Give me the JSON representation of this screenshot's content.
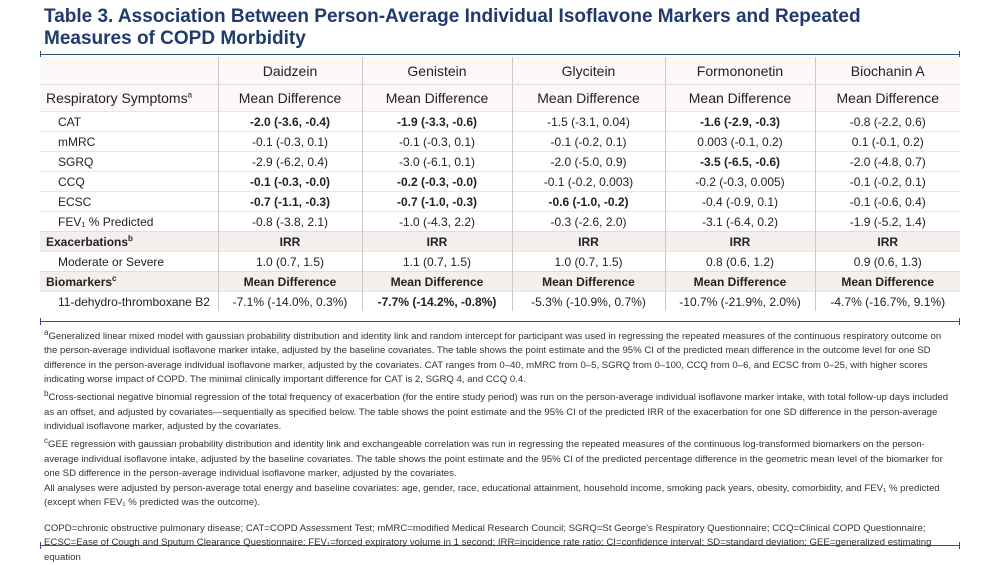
{
  "title": "Table 3. Association Between Person-Average Individual Isoflavone Markers and Repeated Measures of COPD Morbidity",
  "table": {
    "columns": [
      "Daidzein",
      "Genistein",
      "Glycitein",
      "Formononetin",
      "Biochanin A"
    ],
    "sections": [
      {
        "label": "Respiratory Symptoms",
        "sup": "a",
        "header": "Mean Difference",
        "strong": false,
        "rows": [
          {
            "label": "CAT",
            "cells": [
              "-2.0 (-3.6, -0.4)",
              "-1.9 (-3.3, -0.6)",
              "-1.5 (-3.1, 0.04)",
              "-1.6 (-2.9, -0.3)",
              "-0.8 (-2.2, 0.6)"
            ],
            "bold": [
              true,
              true,
              false,
              true,
              false
            ]
          },
          {
            "label": "mMRC",
            "cells": [
              "-0.1 (-0.3, 0.1)",
              "-0.1 (-0.3, 0.1)",
              "-0.1 (-0.2, 0.1)",
              "0.003 (-0.1, 0.2)",
              "0.1 (-0.1, 0.2)"
            ],
            "bold": [
              false,
              false,
              false,
              false,
              false
            ]
          },
          {
            "label": "SGRQ",
            "cells": [
              "-2.9 (-6.2, 0.4)",
              "-3.0 (-6.1, 0.1)",
              "-2.0 (-5.0, 0.9)",
              "-3.5 (-6.5, -0.6)",
              "-2.0 (-4.8, 0.7)"
            ],
            "bold": [
              false,
              false,
              false,
              true,
              false
            ]
          },
          {
            "label": "CCQ",
            "cells": [
              "-0.1 (-0.3, -0.0)",
              "-0.2 (-0.3, -0.0)",
              "-0.1 (-0.2, 0.003)",
              "-0.2 (-0.3, 0.005)",
              "-0.1 (-0.2, 0.1)"
            ],
            "bold": [
              true,
              true,
              false,
              false,
              false
            ]
          },
          {
            "label": "ECSC",
            "cells": [
              "-0.7 (-1.1, -0.3)",
              "-0.7 (-1.0, -0.3)",
              "-0.6 (-1.0, -0.2)",
              "-0.4 (-0.9, 0.1)",
              "-0.1 (-0.6, 0.4)"
            ],
            "bold": [
              true,
              true,
              true,
              false,
              false
            ]
          },
          {
            "label": "FEV₁ % Predicted",
            "cells": [
              "-0.8 (-3.8, 2.1)",
              "-1.0 (-4.3, 2.2)",
              "-0.3 (-2.6, 2.0)",
              "-3.1 (-6.4, 0.2)",
              "-1.9 (-5.2, 1.4)"
            ],
            "bold": [
              false,
              false,
              false,
              false,
              false
            ]
          }
        ]
      },
      {
        "label": "Exacerbations",
        "sup": "b",
        "header": "IRR",
        "strong": true,
        "rows": [
          {
            "label": "Moderate or Severe",
            "cells": [
              "1.0 (0.7, 1.5)",
              "1.1 (0.7, 1.5)",
              "1.0 (0.7, 1.5)",
              "0.8 (0.6, 1.2)",
              "0.9 (0.6, 1.3)"
            ],
            "bold": [
              false,
              false,
              false,
              false,
              false
            ]
          }
        ]
      },
      {
        "label": "Biomarkers",
        "sup": "c",
        "header": "Mean Difference",
        "strong": true,
        "rows": [
          {
            "label": "11-dehydro-thromboxane B2",
            "cells": [
              "-7.1% (-14.0%, 0.3%)",
              "-7.7% (-14.2%, -0.8%)",
              "-5.3% (-10.9%, 0.7%)",
              "-10.7% (-21.9%, 2.0%)",
              "-4.7% (-16.7%, 9.1%)"
            ],
            "bold": [
              false,
              true,
              false,
              false,
              false
            ]
          }
        ]
      }
    ]
  },
  "notes": [
    {
      "sup": "a",
      "text": "Generalized linear mixed model with gaussian probability distribution and identity link and random intercept for participant was used in regressing the repeated measures of the continuous respiratory outcome on the person-average individual isoflavone marker intake, adjusted by the baseline covariates. The table shows the point estimate and the 95% CI of the predicted mean difference in the outcome level for one SD difference in the person-average individual isoflavone marker, adjusted by the covariates. CAT ranges from 0–40, mMRC from 0–5, SGRQ from 0–100, CCQ from 0–6, and ECSC from 0–25, with higher scores indicating worse impact of COPD. The minimal clinically important difference for CAT is 2, SGRQ 4, and CCQ 0.4."
    },
    {
      "sup": "b",
      "text": "Cross-sectional negative binomial regression of the total frequency of exacerbation (for the entire study period) was run on the person-average individual isoflavone marker intake, with total follow-up days included as an offset, and adjusted by covariates—sequentially as specified below. The table shows the point estimate and the 95% CI of the predicted IRR of the exacerbation for one SD difference in the person-average individual isoflavone marker, adjusted by the covariates."
    },
    {
      "sup": "c",
      "text": "GEE regression with gaussian probability distribution and identity link and exchangeable correlation was run in regressing the repeated measures of the continuous log-transformed biomarkers on the person-average individual isoflavone intake, adjusted by the baseline covariates. The table shows the point estimate and the 95% CI of the predicted percentage difference in the geometric mean level of the biomarker for one SD difference in the person-average individual isoflavone marker, adjusted by the covariates."
    },
    {
      "text": "All analyses were adjusted by person-average total energy and baseline covariates: age, gender, race, educational attainment, household income, smoking pack years, obesity, comorbidity, and FEV₁ % predicted (except when FEV₁ % predicted was the outcome)."
    }
  ],
  "abbreviations": "COPD=chronic obstructive pulmonary disease; CAT=COPD Assessment Test; mMRC=modified Medical Research Council; SGRQ=St George's Respiratory Questionnaire; CCQ=Clinical COPD Questionnaire; ECSC=Ease of Cough and Sputum Clearance Questionnaire; FEV₁=forced expiratory volume in 1 second; IRR=incidence rate ratio; CI=confidence interval; SD=standard deviation; GEE=generalized estimating equation"
}
